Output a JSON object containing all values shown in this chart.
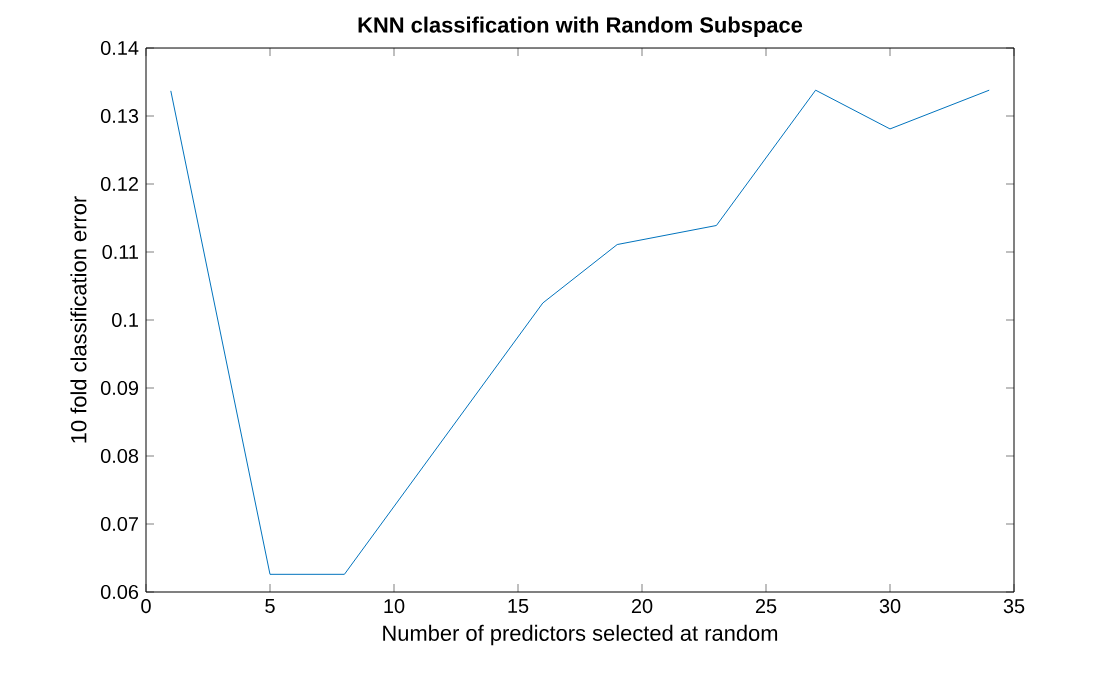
{
  "chart_data": {
    "type": "line",
    "title": "KNN classification with Random Subspace",
    "xlabel": "Number of predictors selected at random",
    "ylabel": "10 fold classification error",
    "x": [
      1,
      5,
      8,
      16,
      19,
      23,
      27,
      30,
      34
    ],
    "series": [
      {
        "color": "#0072bd",
        "values": [
          0.1337,
          0.0626,
          0.0626,
          0.1025,
          0.1111,
          0.1139,
          0.1338,
          0.1281,
          0.1338
        ]
      }
    ],
    "xlim": [
      0,
      35
    ],
    "xticks": [
      0,
      5,
      10,
      15,
      20,
      25,
      30,
      35
    ],
    "ylim": [
      0.06,
      0.14
    ],
    "yticks": [
      0.06,
      0.07,
      0.08,
      0.09,
      0.1,
      0.11,
      0.12,
      0.13,
      0.14
    ],
    "marker": "none",
    "line_style": "solid"
  }
}
